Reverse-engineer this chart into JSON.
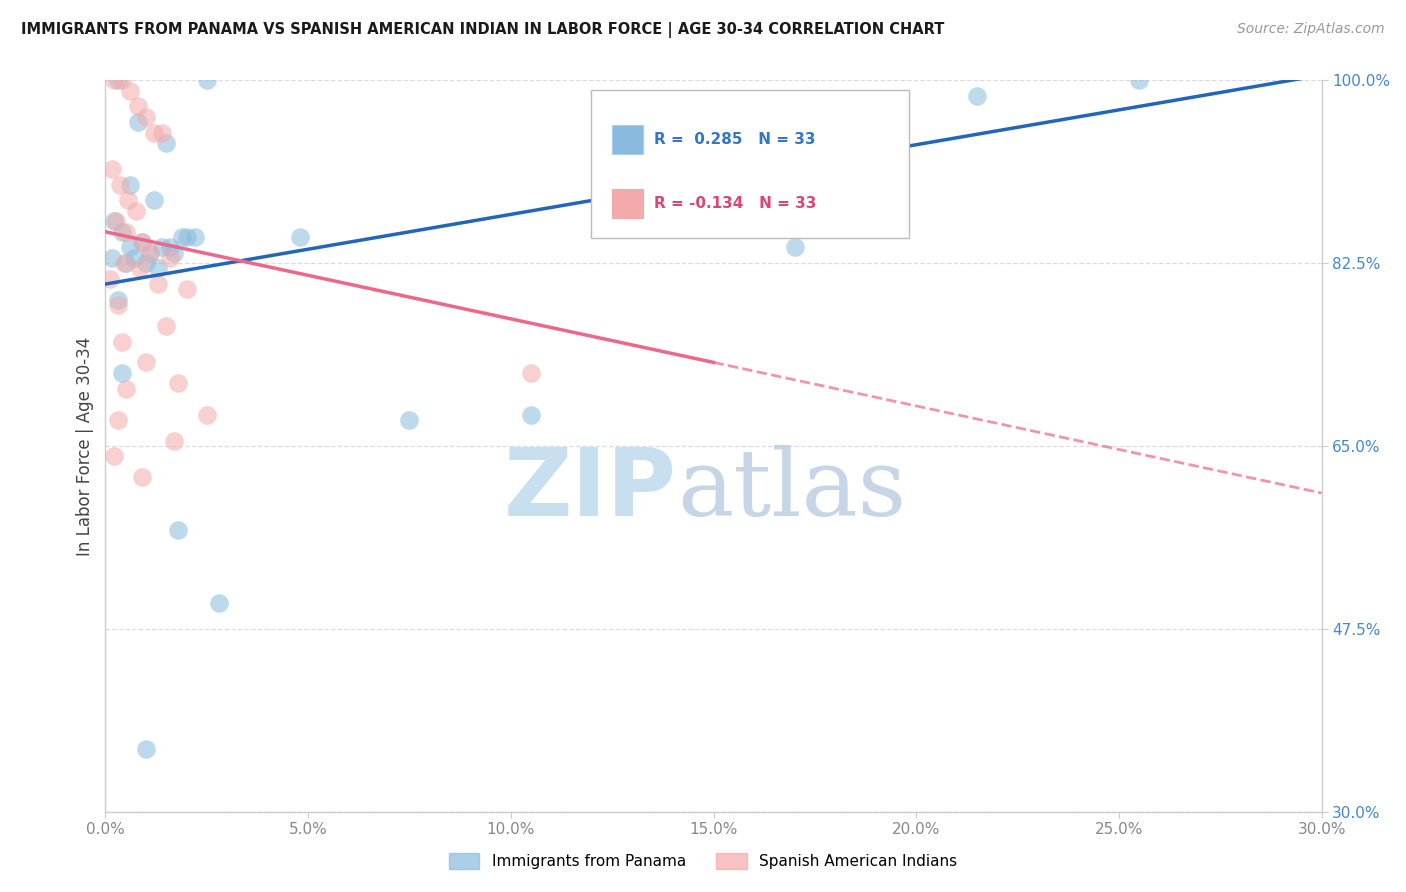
{
  "title": "IMMIGRANTS FROM PANAMA VS SPANISH AMERICAN INDIAN IN LABOR FORCE | AGE 30-34 CORRELATION CHART",
  "source_text": "Source: ZipAtlas.com",
  "ylabel": "In Labor Force | Age 30-34",
  "xlim": [
    0.0,
    30.0
  ],
  "ylim": [
    30.0,
    100.0
  ],
  "xtick_labels": [
    "0.0%",
    "5.0%",
    "10.0%",
    "15.0%",
    "20.0%",
    "25.0%",
    "30.0%"
  ],
  "xtick_values": [
    0.0,
    5.0,
    10.0,
    15.0,
    20.0,
    25.0,
    30.0
  ],
  "ytick_labels": [
    "100.0%",
    "82.5%",
    "65.0%",
    "47.5%",
    "30.0%"
  ],
  "ytick_values": [
    100.0,
    82.5,
    65.0,
    47.5,
    30.0
  ],
  "blue_r": "0.285",
  "blue_n": "33",
  "pink_r": "-0.134",
  "pink_n": "33",
  "blue_color": "#88bbdd",
  "pink_color": "#f4aaaa",
  "blue_line_color": "#2266bb",
  "pink_line_color": "#ee6688",
  "watermark_zip_color": "#c8dff0",
  "watermark_atlas_color": "#b8cce0",
  "legend_label_blue": "Immigrants from Panama",
  "legend_label_pink": "Spanish American Indians",
  "blue_scatter_x": [
    0.3,
    0.8,
    1.5,
    2.0,
    2.5,
    0.2,
    0.4,
    0.6,
    0.9,
    1.1,
    1.4,
    0.15,
    0.5,
    0.7,
    1.0,
    1.3,
    1.7,
    1.9,
    0.3,
    0.6,
    1.2,
    4.8,
    21.5,
    25.5,
    0.4,
    1.6,
    2.2,
    10.5,
    7.5,
    1.8,
    2.8,
    17.0,
    1.0
  ],
  "blue_scatter_y": [
    100.0,
    96.0,
    94.0,
    85.0,
    100.0,
    86.5,
    85.5,
    84.0,
    84.5,
    83.5,
    84.0,
    83.0,
    82.5,
    83.0,
    82.5,
    82.0,
    83.5,
    85.0,
    79.0,
    90.0,
    88.5,
    85.0,
    98.5,
    100.0,
    72.0,
    84.0,
    85.0,
    68.0,
    67.5,
    57.0,
    50.0,
    84.0,
    36.0
  ],
  "pink_scatter_x": [
    0.2,
    0.4,
    0.6,
    0.8,
    1.0,
    1.2,
    1.4,
    0.15,
    0.35,
    0.55,
    0.75,
    0.25,
    0.5,
    0.9,
    1.1,
    1.6,
    0.45,
    0.85,
    0.1,
    1.3,
    2.0,
    0.3,
    1.5,
    0.4,
    1.0,
    1.8,
    0.5,
    2.5,
    0.3,
    1.7,
    0.2,
    10.5,
    0.9
  ],
  "pink_scatter_y": [
    100.0,
    100.0,
    99.0,
    97.5,
    96.5,
    95.0,
    95.0,
    91.5,
    90.0,
    88.5,
    87.5,
    86.5,
    85.5,
    84.5,
    83.5,
    83.0,
    82.5,
    82.0,
    81.0,
    80.5,
    80.0,
    78.5,
    76.5,
    75.0,
    73.0,
    71.0,
    70.5,
    68.0,
    67.5,
    65.5,
    64.0,
    72.0,
    62.0
  ],
  "blue_trend_x0": 0.0,
  "blue_trend_y0": 80.5,
  "blue_trend_x1": 30.0,
  "blue_trend_y1": 100.5,
  "pink_trend_x0": 0.0,
  "pink_trend_y0": 85.5,
  "pink_trend_x1": 15.0,
  "pink_trend_y1": 73.0,
  "pink_dash_x0": 15.0,
  "pink_dash_y0": 73.0,
  "pink_dash_x1": 30.0,
  "pink_dash_y1": 60.5,
  "grid_color": "#dddddd",
  "tick_color": "#4488cc",
  "xtick_color": "#888888",
  "spine_color": "#cccccc"
}
